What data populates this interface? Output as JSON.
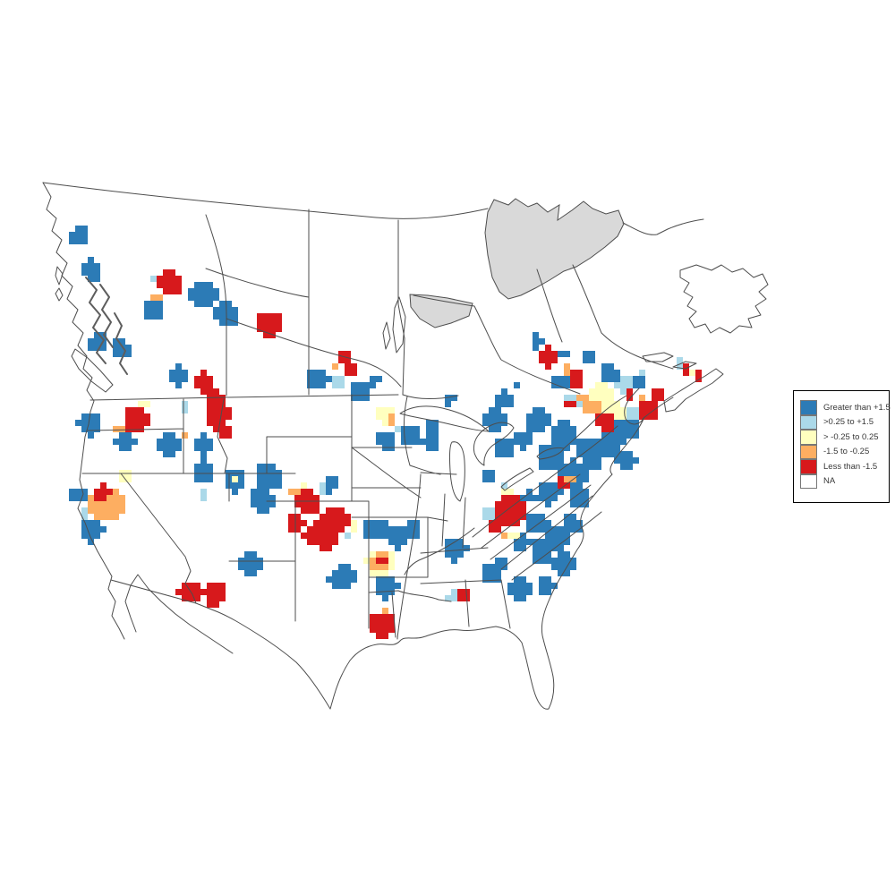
{
  "map": {
    "background_color": "#ffffff",
    "outline_color": "#4d4d4d",
    "na_region_fill": "#d9d9d9",
    "cell_size": 7,
    "class_colors": {
      "hi": "#2c7bb6",
      "up": "#abd9e9",
      "mid": "#ffffbf",
      "dn": "#fdae61",
      "lo": "#d7191c",
      "na": "#ffffff"
    },
    "clusters": [
      [
        "hi",
        88,
        264,
        11
      ],
      [
        "hi",
        103,
        302,
        12
      ],
      [
        "hi",
        110,
        382,
        11
      ],
      [
        "hi",
        135,
        390,
        12
      ],
      [
        "hi",
        172,
        347,
        12
      ],
      [
        "hi",
        228,
        330,
        16
      ],
      [
        "hi",
        253,
        352,
        14
      ],
      [
        "up",
        176,
        310,
        5
      ],
      [
        "mid",
        199,
        319,
        4
      ],
      [
        "dn",
        176,
        331,
        5
      ],
      [
        "lo",
        190,
        317,
        14
      ],
      [
        "lo",
        300,
        362,
        15
      ],
      [
        "hi",
        200,
        420,
        11
      ],
      [
        "lo",
        228,
        428,
        12
      ],
      [
        "lo",
        240,
        448,
        12
      ],
      [
        "dn",
        373,
        411,
        4
      ],
      [
        "lo",
        385,
        398,
        9
      ],
      [
        "lo",
        390,
        414,
        8
      ],
      [
        "hi",
        355,
        424,
        13
      ],
      [
        "up",
        377,
        427,
        6
      ],
      [
        "hi",
        403,
        436,
        12
      ],
      [
        "hi",
        418,
        425,
        7
      ],
      [
        "hi",
        100,
        473,
        14
      ],
      [
        "hi",
        140,
        494,
        12
      ],
      [
        "hi",
        188,
        497,
        13
      ],
      [
        "hi",
        228,
        497,
        11
      ],
      [
        "dn",
        133,
        479,
        6
      ],
      [
        "mid",
        161,
        449,
        5
      ],
      [
        "up",
        207,
        455,
        5
      ],
      [
        "dn",
        207,
        485,
        5
      ],
      [
        "mid",
        256,
        478,
        4
      ],
      [
        "lo",
        152,
        469,
        15
      ],
      [
        "lo",
        243,
        462,
        14
      ],
      [
        "lo",
        250,
        480,
        9
      ],
      [
        "hi",
        228,
        526,
        13
      ],
      [
        "hi",
        262,
        538,
        13
      ],
      [
        "mid",
        261,
        534,
        4
      ],
      [
        "up",
        228,
        552,
        4
      ],
      [
        "hi",
        300,
        533,
        15
      ],
      [
        "hi",
        292,
        558,
        15
      ],
      [
        "hi",
        370,
        542,
        8
      ],
      [
        "up",
        360,
        545,
        5
      ],
      [
        "dn",
        330,
        549,
        4
      ],
      [
        "mid",
        338,
        544,
        4
      ],
      [
        "hi",
        88,
        553,
        10
      ],
      [
        "hi",
        103,
        593,
        13
      ],
      [
        "up",
        95,
        575,
        5
      ],
      [
        "mid",
        140,
        532,
        4
      ],
      [
        "dn",
        120,
        563,
        20
      ],
      [
        "lo",
        114,
        551,
        9
      ],
      [
        "lo",
        345,
        562,
        15
      ],
      [
        "lo",
        374,
        580,
        16
      ],
      [
        "lo",
        352,
        598,
        14
      ],
      [
        "lo",
        331,
        585,
        10
      ],
      [
        "lo",
        365,
        608,
        8
      ],
      [
        "lo",
        212,
        661,
        13
      ],
      [
        "lo",
        240,
        664,
        13
      ],
      [
        "hi",
        280,
        630,
        12
      ],
      [
        "hi",
        385,
        643,
        12
      ],
      [
        "up",
        390,
        597,
        5
      ],
      [
        "mid",
        394,
        589,
        4
      ],
      [
        "lo",
        365,
        601,
        13
      ],
      [
        "hi",
        420,
        591,
        13
      ],
      [
        "hi",
        445,
        600,
        13
      ],
      [
        "hi",
        462,
        590,
        10
      ],
      [
        "hi",
        380,
        648,
        13
      ],
      [
        "mid",
        425,
        629,
        16
      ],
      [
        "dn",
        424,
        628,
        11
      ],
      [
        "lo",
        428,
        627,
        4
      ],
      [
        "hi",
        432,
        656,
        13
      ],
      [
        "dn",
        430,
        684,
        5
      ],
      [
        "lo",
        428,
        698,
        15
      ],
      [
        "hi",
        508,
        613,
        14
      ],
      [
        "hi",
        546,
        532,
        5
      ],
      [
        "mid",
        433,
        464,
        11
      ],
      [
        "dn",
        437,
        469,
        7
      ],
      [
        "up",
        448,
        478,
        4
      ],
      [
        "hi",
        433,
        491,
        11
      ],
      [
        "hi",
        460,
        486,
        12
      ],
      [
        "hi",
        482,
        494,
        11
      ],
      [
        "hi",
        486,
        476,
        8
      ],
      [
        "hi",
        508,
        443,
        4
      ],
      [
        "hi",
        500,
        446,
        6
      ],
      [
        "hi",
        552,
        470,
        13
      ],
      [
        "hi",
        563,
        447,
        10
      ],
      [
        "hi",
        563,
        500,
        12
      ],
      [
        "hi",
        579,
        432,
        5
      ],
      [
        "hi",
        600,
        382,
        8
      ],
      [
        "lo",
        612,
        399,
        12
      ],
      [
        "hi",
        629,
        397,
        6
      ],
      [
        "dn",
        631,
        413,
        4
      ],
      [
        "lo",
        643,
        423,
        11
      ],
      [
        "mid",
        672,
        444,
        16
      ],
      [
        "mid",
        690,
        460,
        10
      ],
      [
        "up",
        640,
        449,
        8
      ],
      [
        "up",
        700,
        433,
        11
      ],
      [
        "up",
        706,
        464,
        9
      ],
      [
        "dn",
        661,
        456,
        9
      ],
      [
        "dn",
        652,
        447,
        6
      ],
      [
        "lo",
        638,
        450,
        5
      ],
      [
        "hi",
        627,
        428,
        9
      ],
      [
        "up",
        716,
        417,
        5
      ],
      [
        "dn",
        716,
        448,
        4
      ],
      [
        "lo",
        705,
        442,
        5
      ],
      [
        "hi",
        712,
        427,
        8
      ],
      [
        "hi",
        658,
        398,
        9
      ],
      [
        "hi",
        682,
        418,
        11
      ],
      [
        "hi",
        600,
        470,
        14
      ],
      [
        "hi",
        630,
        486,
        16
      ],
      [
        "hi",
        658,
        500,
        13
      ],
      [
        "hi",
        614,
        510,
        15
      ],
      [
        "hi",
        640,
        530,
        16
      ],
      [
        "hi",
        614,
        550,
        14
      ],
      [
        "hi",
        648,
        556,
        12
      ],
      [
        "hi",
        585,
        492,
        10
      ],
      [
        "hi",
        700,
        480,
        13
      ],
      [
        "hi",
        682,
        496,
        15
      ],
      [
        "hi",
        662,
        512,
        13
      ],
      [
        "hi",
        700,
        512,
        11
      ],
      [
        "lo",
        676,
        472,
        10
      ],
      [
        "lo",
        736,
        441,
        10
      ],
      [
        "lo",
        725,
        459,
        12
      ],
      [
        "up",
        761,
        407,
        5
      ],
      [
        "lo",
        768,
        412,
        4
      ],
      [
        "mid",
        776,
        415,
        4
      ],
      [
        "lo",
        782,
        420,
        3
      ],
      [
        "lo",
        630,
        538,
        6
      ],
      [
        "dn",
        638,
        537,
        3
      ],
      [
        "hi",
        592,
        555,
        8
      ],
      [
        "up",
        565,
        543,
        5
      ],
      [
        "mid",
        568,
        548,
        4
      ],
      [
        "mid",
        548,
        578,
        6
      ],
      [
        "dn",
        550,
        586,
        5
      ],
      [
        "mid",
        575,
        600,
        5
      ],
      [
        "dn",
        565,
        598,
        4
      ],
      [
        "lo",
        570,
        572,
        19
      ],
      [
        "lo",
        556,
        588,
        8
      ],
      [
        "up",
        546,
        574,
        5
      ],
      [
        "hi",
        582,
        608,
        10
      ],
      [
        "hi",
        600,
        585,
        13
      ],
      [
        "hi",
        624,
        600,
        15
      ],
      [
        "hi",
        638,
        586,
        11
      ],
      [
        "hi",
        606,
        616,
        13
      ],
      [
        "hi",
        630,
        630,
        13
      ],
      [
        "hi",
        548,
        640,
        12
      ],
      [
        "hi",
        560,
        630,
        10
      ],
      [
        "hi",
        580,
        658,
        13
      ],
      [
        "hi",
        610,
        654,
        11
      ],
      [
        "up",
        505,
        666,
        6
      ],
      [
        "lo",
        517,
        666,
        8
      ]
    ]
  },
  "legend": {
    "entries": [
      {
        "label": "Greater than +1.5",
        "class": "hi"
      },
      {
        "label": ">0.25 to +1.5",
        "class": "up"
      },
      {
        "label": "> -0.25 to 0.25",
        "class": "mid"
      },
      {
        "label": "-1.5 to -0.25",
        "class": "dn"
      },
      {
        "label": "Less than -1.5",
        "class": "lo"
      },
      {
        "label": "NA",
        "class": "na"
      }
    ]
  }
}
